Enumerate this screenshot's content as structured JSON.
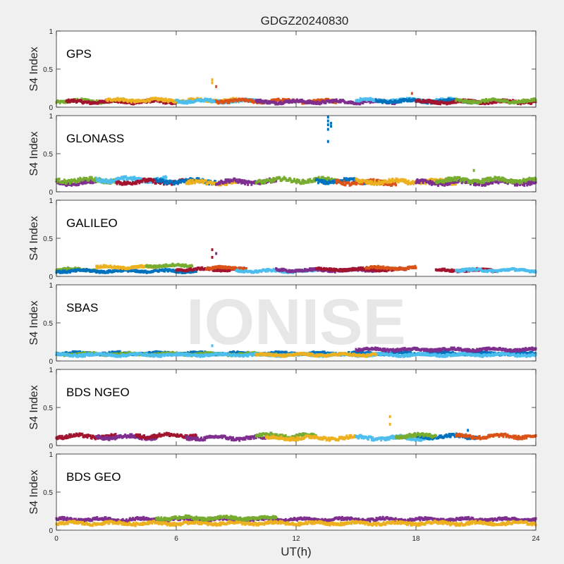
{
  "title": "GDGZ20240830",
  "watermark": "IONISE",
  "xlabel": "UT(h)",
  "ylabel": "S4 Index",
  "x_ticks": [
    "0",
    "6",
    "12",
    "18",
    "24"
  ],
  "y_ticks": [
    "0",
    "0.5",
    "1"
  ],
  "colors": {
    "background": "#f0f0f0",
    "axes_bg": "#ffffff",
    "axis": "#262626",
    "watermark": "#e3e3e3",
    "series": [
      "#0072BD",
      "#D95319",
      "#EDB120",
      "#7E2F8E",
      "#77AC30",
      "#4DBEEE",
      "#A2142F"
    ]
  },
  "chart_data": [
    {
      "type": "scatter",
      "panel": "GPS",
      "xlim": [
        0,
        24
      ],
      "ylim": [
        0,
        1
      ],
      "grid": false,
      "baseline": {
        "mean": 0.08,
        "amplitude": 0.025
      },
      "series_colors": [
        "#0072BD",
        "#D95319",
        "#EDB120",
        "#7E2F8E",
        "#77AC30",
        "#4DBEEE",
        "#A2142F"
      ],
      "segments": [
        {
          "color": "#77AC30",
          "x": [
            0,
            3.5
          ],
          "y": 0.08
        },
        {
          "color": "#A2142F",
          "x": [
            0.5,
            6
          ],
          "y": 0.07
        },
        {
          "color": "#EDB120",
          "x": [
            2.5,
            9
          ],
          "y": 0.09
        },
        {
          "color": "#4DBEEE",
          "x": [
            6,
            11
          ],
          "y": 0.08
        },
        {
          "color": "#D95319",
          "x": [
            8,
            14
          ],
          "y": 0.08
        },
        {
          "color": "#7E2F8E",
          "x": [
            10,
            17
          ],
          "y": 0.07
        },
        {
          "color": "#4DBEEE",
          "x": [
            15,
            20
          ],
          "y": 0.09
        },
        {
          "color": "#0072BD",
          "x": [
            16,
            21
          ],
          "y": 0.08
        },
        {
          "color": "#A2142F",
          "x": [
            18,
            24
          ],
          "y": 0.07
        },
        {
          "color": "#77AC30",
          "x": [
            20,
            24
          ],
          "y": 0.08
        }
      ],
      "spikes": [
        {
          "x": 7.8,
          "y": [
            0.36,
            0.32
          ],
          "color": "#EDB120"
        },
        {
          "x": 8.0,
          "y": [
            0.27
          ],
          "color": "#D95319"
        },
        {
          "x": 17.8,
          "y": [
            0.18
          ],
          "color": "#D95319"
        }
      ]
    },
    {
      "type": "scatter",
      "panel": "GLONASS",
      "xlim": [
        0,
        24
      ],
      "ylim": [
        0,
        1
      ],
      "grid": false,
      "baseline": {
        "mean": 0.14,
        "amplitude": 0.035
      },
      "series_colors": [
        "#0072BD",
        "#D95319",
        "#EDB120",
        "#7E2F8E",
        "#77AC30",
        "#4DBEEE",
        "#A2142F"
      ],
      "segments": [
        {
          "color": "#7E2F8E",
          "x": [
            0,
            2
          ],
          "y": 0.12
        },
        {
          "color": "#77AC30",
          "x": [
            0,
            3
          ],
          "y": 0.15
        },
        {
          "color": "#4DBEEE",
          "x": [
            2,
            5.5
          ],
          "y": 0.16
        },
        {
          "color": "#A2142F",
          "x": [
            3,
            6.5
          ],
          "y": 0.13
        },
        {
          "color": "#0072BD",
          "x": [
            5,
            8
          ],
          "y": 0.14
        },
        {
          "color": "#EDB120",
          "x": [
            6.5,
            9
          ],
          "y": 0.12
        },
        {
          "color": "#7E2F8E",
          "x": [
            8,
            11
          ],
          "y": 0.13
        },
        {
          "color": "#77AC30",
          "x": [
            10,
            14
          ],
          "y": 0.15
        },
        {
          "color": "#0072BD",
          "x": [
            13,
            15.5
          ],
          "y": 0.14
        },
        {
          "color": "#D95319",
          "x": [
            14,
            17
          ],
          "y": 0.12
        },
        {
          "color": "#EDB120",
          "x": [
            15,
            20
          ],
          "y": 0.13
        },
        {
          "color": "#7E2F8E",
          "x": [
            18,
            24
          ],
          "y": 0.12
        },
        {
          "color": "#77AC30",
          "x": [
            19,
            24
          ],
          "y": 0.15
        }
      ],
      "spikes": [
        {
          "x": 13.6,
          "y": [
            0.98,
            0.93,
            0.88,
            0.82,
            0.66
          ],
          "color": "#0072BD"
        },
        {
          "x": 13.75,
          "y": [
            0.9,
            0.86
          ],
          "color": "#0072BD"
        },
        {
          "x": 20.9,
          "y": [
            0.28
          ],
          "color": "#77AC30"
        }
      ]
    },
    {
      "type": "scatter",
      "panel": "GALILEO",
      "xlim": [
        0,
        24
      ],
      "ylim": [
        0,
        1
      ],
      "grid": false,
      "baseline": {
        "mean": 0.08,
        "amplitude": 0.02
      },
      "series_colors": [
        "#0072BD",
        "#D95319",
        "#EDB120",
        "#7E2F8E",
        "#77AC30",
        "#4DBEEE",
        "#A2142F"
      ],
      "segments": [
        {
          "color": "#77AC30",
          "x": [
            0,
            2
          ],
          "y": 0.09
        },
        {
          "color": "#0072BD",
          "x": [
            0,
            7
          ],
          "y": 0.07
        },
        {
          "color": "#EDB120",
          "x": [
            2,
            5
          ],
          "y": 0.12
        },
        {
          "color": "#77AC30",
          "x": [
            4.5,
            6.8
          ],
          "y": 0.14
        },
        {
          "color": "#A2142F",
          "x": [
            6,
            9.5
          ],
          "y": 0.09
        },
        {
          "color": "#D95319",
          "x": [
            7.5,
            9.5
          ],
          "y": 0.11
        },
        {
          "color": "#4DBEEE",
          "x": [
            9,
            13
          ],
          "y": 0.07
        },
        {
          "color": "#7E2F8E",
          "x": [
            11,
            16
          ],
          "y": 0.08
        },
        {
          "color": "#A2142F",
          "x": [
            13,
            17.5
          ],
          "y": 0.09
        },
        {
          "color": "#D95319",
          "x": [
            15.5,
            18
          ],
          "y": 0.11
        },
        {
          "color": "#A2142F",
          "x": [
            19,
            22
          ],
          "y": 0.08
        },
        {
          "color": "#4DBEEE",
          "x": [
            20,
            24
          ],
          "y": 0.08
        }
      ],
      "spikes": [
        {
          "x": 7.8,
          "y": [
            0.35,
            0.25
          ],
          "color": "#A2142F"
        },
        {
          "x": 8.0,
          "y": [
            0.3
          ],
          "color": "#7E2F8E"
        }
      ]
    },
    {
      "type": "scatter",
      "panel": "SBAS",
      "xlim": [
        0,
        24
      ],
      "ylim": [
        0,
        1
      ],
      "grid": false,
      "baseline": {
        "mean": 0.09,
        "amplitude": 0.02
      },
      "series_colors": [
        "#0072BD",
        "#D95319",
        "#EDB120",
        "#7E2F8E",
        "#77AC30",
        "#4DBEEE",
        "#A2142F"
      ],
      "segments": [
        {
          "color": "#0072BD",
          "x": [
            0,
            24
          ],
          "y": 0.1
        },
        {
          "color": "#77AC30",
          "x": [
            0,
            11
          ],
          "y": 0.09
        },
        {
          "color": "#4DBEEE",
          "x": [
            0,
            24
          ],
          "y": 0.08
        },
        {
          "color": "#EDB120",
          "x": [
            10,
            16
          ],
          "y": 0.08
        },
        {
          "color": "#7E2F8E",
          "x": [
            15,
            24
          ],
          "y": 0.15
        }
      ],
      "spikes": [
        {
          "x": 7.8,
          "y": [
            0.2
          ],
          "color": "#4DBEEE"
        }
      ]
    },
    {
      "type": "scatter",
      "panel": "BDS NGEO",
      "xlim": [
        0,
        24
      ],
      "ylim": [
        0,
        1
      ],
      "grid": false,
      "baseline": {
        "mean": 0.12,
        "amplitude": 0.03
      },
      "series_colors": [
        "#0072BD",
        "#D95319",
        "#EDB120",
        "#7E2F8E",
        "#77AC30",
        "#4DBEEE",
        "#A2142F"
      ],
      "segments": [
        {
          "color": "#A2142F",
          "x": [
            0,
            3
          ],
          "y": 0.12
        },
        {
          "color": "#7E2F8E",
          "x": [
            2,
            5
          ],
          "y": 0.11
        },
        {
          "color": "#A2142F",
          "x": [
            4,
            7
          ],
          "y": 0.13
        },
        {
          "color": "#7E2F8E",
          "x": [
            6.5,
            10.5
          ],
          "y": 0.1
        },
        {
          "color": "#77AC30",
          "x": [
            10,
            13
          ],
          "y": 0.13
        },
        {
          "color": "#EDB120",
          "x": [
            10.5,
            15
          ],
          "y": 0.1
        },
        {
          "color": "#4DBEEE",
          "x": [
            15,
            19
          ],
          "y": 0.1
        },
        {
          "color": "#0072BD",
          "x": [
            18,
            21
          ],
          "y": 0.12
        },
        {
          "color": "#D95319",
          "x": [
            20,
            24
          ],
          "y": 0.12
        },
        {
          "color": "#77AC30",
          "x": [
            17,
            19
          ],
          "y": 0.13
        }
      ],
      "spikes": [
        {
          "x": 16.7,
          "y": [
            0.38,
            0.28
          ],
          "color": "#EDB120"
        },
        {
          "x": 20.6,
          "y": [
            0.2
          ],
          "color": "#0072BD"
        }
      ]
    },
    {
      "type": "scatter",
      "panel": "BDS GEO",
      "xlim": [
        0,
        24
      ],
      "ylim": [
        0,
        1
      ],
      "grid": false,
      "baseline": {
        "mean": 0.12,
        "amplitude": 0.025
      },
      "series_colors": [
        "#0072BD",
        "#D95319",
        "#EDB120",
        "#7E2F8E",
        "#77AC30",
        "#4DBEEE",
        "#A2142F"
      ],
      "segments": [
        {
          "color": "#7E2F8E",
          "x": [
            0,
            24
          ],
          "y": 0.14
        },
        {
          "color": "#EDB120",
          "x": [
            0,
            24
          ],
          "y": 0.09
        },
        {
          "color": "#77AC30",
          "x": [
            5,
            11
          ],
          "y": 0.16
        }
      ],
      "spikes": []
    }
  ]
}
